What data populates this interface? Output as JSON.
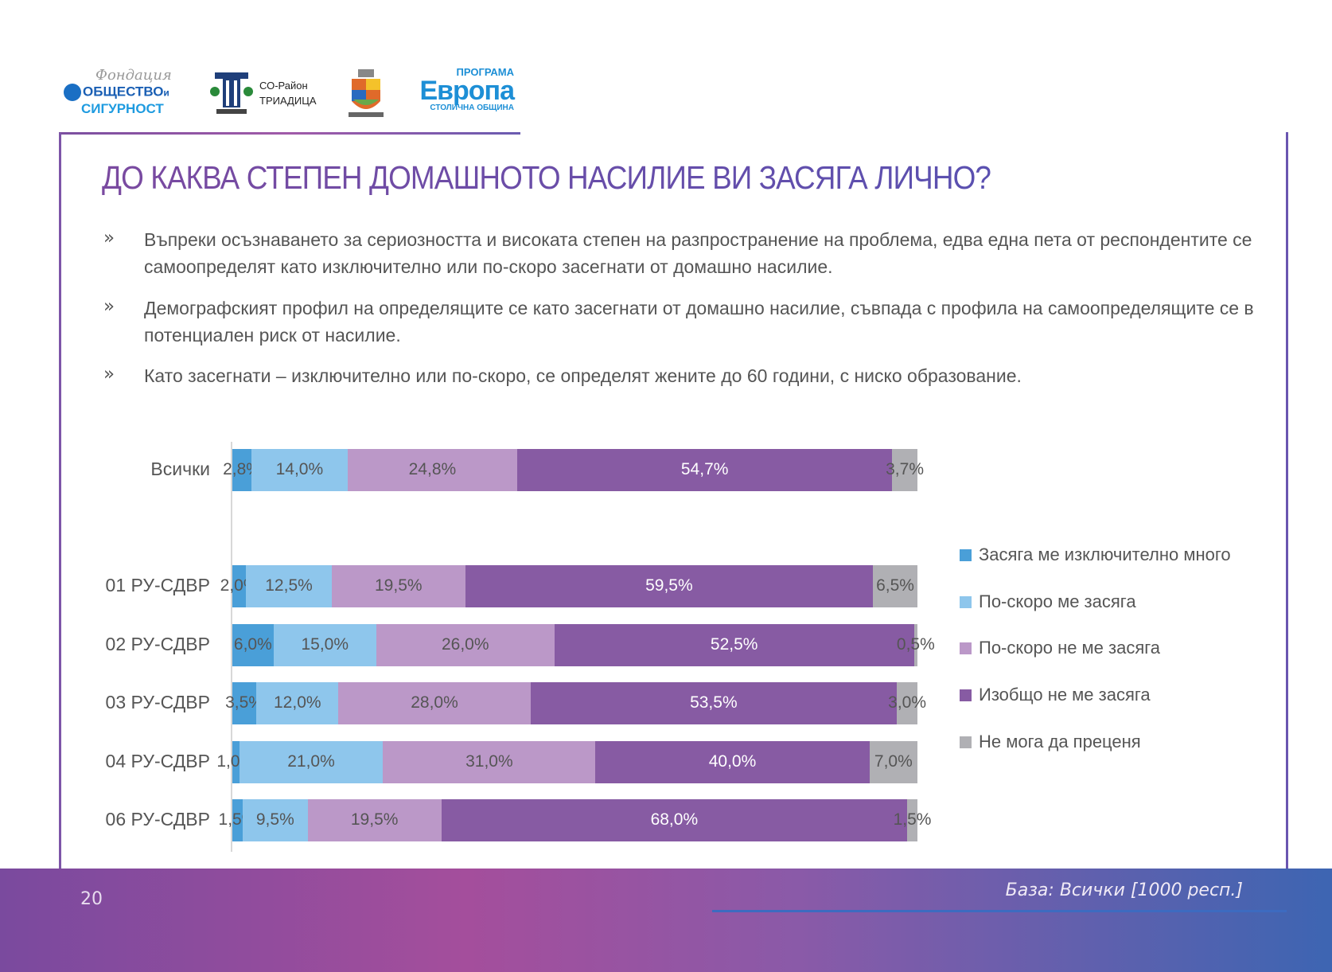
{
  "logos": {
    "foundation": {
      "script": "Фондация",
      "line1": "ОБЩЕСТВО",
      "line1b": "и",
      "line2": "СИГУРНОСТ"
    },
    "district": {
      "line1": "СО-Район",
      "line2": "ТРИАДИЦА"
    },
    "europe": {
      "top": "ПРОГРАМА",
      "main": "Европа",
      "bottom": "СТОЛИЧНА ОБЩИНА"
    }
  },
  "title": "ДО КАКВА СТЕПЕН ДОМАШНОТО НАСИЛИЕ ВИ ЗАСЯГА ЛИЧНО?",
  "bullet_symbol": "»",
  "bullets": [
    "Въпреки осъзнаването за сериозността и високата степен на разпространение на проблема, едва една пета от респондентите се самоопределят като изключително или по-скоро засегнати от домашно насилие.",
    "Демографският профил на определящите се като засегнати от домашно насилие, съвпада с профила на самоопределящите се в потенциален риск от насилие.",
    "Като засегнати – изключително или по-скоро, се определят жените до 60 години, с ниско образование."
  ],
  "chart_data": {
    "type": "bar",
    "orientation": "horizontal",
    "stacked": "100%",
    "categories": [
      "Всички",
      "01 РУ-СДВР",
      "02 РУ-СДВР",
      "03 РУ-СДВР",
      "04 РУ-СДВР",
      "06 РУ-СДВР"
    ],
    "series": [
      {
        "name": "Засяга ме изключително много",
        "color": "#4a9fd8",
        "values": [
          2.8,
          2.0,
          6.0,
          3.5,
          1.0,
          1.5
        ],
        "labels": [
          "2,8%",
          "2,0%",
          "6,0%",
          "3,5%",
          "1,0%",
          "1,5%"
        ]
      },
      {
        "name": "По-скоро ме засяга",
        "color": "#8ec6ec",
        "values": [
          14.0,
          12.5,
          15.0,
          12.0,
          21.0,
          9.5
        ],
        "labels": [
          "14,0%",
          "12,5%",
          "15,0%",
          "12,0%",
          "21,0%",
          "9,5%"
        ]
      },
      {
        "name": "По-скоро не ме засяга",
        "color": "#bb98c8",
        "values": [
          24.8,
          19.5,
          26.0,
          28.0,
          31.0,
          19.5
        ],
        "labels": [
          "24,8%",
          "19,5%",
          "26,0%",
          "28,0%",
          "31,0%",
          "19,5%"
        ]
      },
      {
        "name": "Изобщо не ме засяга",
        "color": "#875ba3",
        "values": [
          54.7,
          59.5,
          52.5,
          53.5,
          40.0,
          68.0
        ],
        "labels": [
          "54,7%",
          "59,5%",
          "52,5%",
          "53,5%",
          "40,0%",
          "68,0%"
        ]
      },
      {
        "name": "Не мога да преценя",
        "color": "#b0b0b4",
        "values": [
          3.7,
          6.5,
          0.5,
          3.0,
          7.0,
          1.5
        ],
        "labels": [
          "3,7%",
          "6,5%",
          "0,5%",
          "3,0%",
          "7,0%",
          "1,5%"
        ]
      }
    ],
    "legend": "right",
    "grid": false
  },
  "footer": {
    "page_number": "20",
    "base": "База: Всички [1000 респ.]"
  }
}
